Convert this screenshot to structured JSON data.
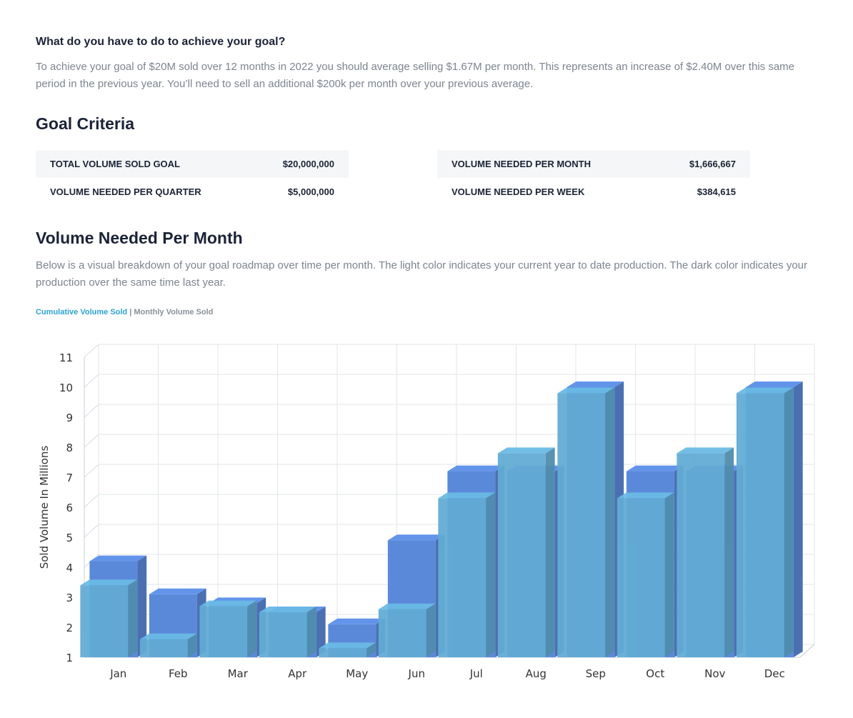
{
  "intro": {
    "title": "What do you have to do to achieve your goal?",
    "text": "To achieve your goal of $20M sold over 12 months in 2022 you should average selling $1.67M per month.  This represents an increase of $2.40M over this same period in the previous year.  You’ll need to sell an additional $200k per month over your previous average."
  },
  "criteria": {
    "title": "Goal Criteria",
    "left": [
      {
        "label": "TOTAL VOLUME SOLD GOAL",
        "value": "$20,000,000"
      },
      {
        "label": "VOLUME NEEDED PER QUARTER",
        "value": "$5,000,000"
      }
    ],
    "right": [
      {
        "label": "VOLUME NEEDED PER MONTH",
        "value": "$1,666,667"
      },
      {
        "label": "VOLUME NEEDED PER WEEK",
        "value": "$384,615"
      }
    ]
  },
  "volume": {
    "title": "Volume Needed Per Month",
    "text": "Below is a visual breakdown of your goal roadmap over time per month.  The light color indicates your current year to date production.  The dark color indicates your production over the same time last year.",
    "toggle_active": "Cumulative Volume Sold",
    "toggle_sep": " | ",
    "toggle_inactive": "Monthly Volume Sold"
  },
  "chart_data": {
    "type": "bar",
    "ylabel": "Sold Volume In Millions",
    "ylim": [
      1,
      11
    ],
    "yticks": [
      1,
      2,
      3,
      4,
      5,
      6,
      7,
      8,
      9,
      10,
      11
    ],
    "categories": [
      "Jan",
      "Feb",
      "Mar",
      "Apr",
      "May",
      "Jun",
      "Jul",
      "Aug",
      "Sep",
      "Oct",
      "Nov",
      "Dec"
    ],
    "series": [
      {
        "name": "",
        "color": "#5b89d9",
        "values": [
          4.2,
          3.1,
          2.8,
          2.5,
          2.1,
          4.9,
          7.2,
          7.2,
          10.0,
          7.2,
          7.2,
          10.0
        ]
      },
      {
        "name": "",
        "color": "#62acd4",
        "values": [
          3.4,
          1.6,
          2.7,
          2.5,
          1.3,
          2.6,
          6.3,
          7.8,
          9.8,
          6.3,
          7.8,
          9.8
        ]
      }
    ],
    "grid": true
  }
}
